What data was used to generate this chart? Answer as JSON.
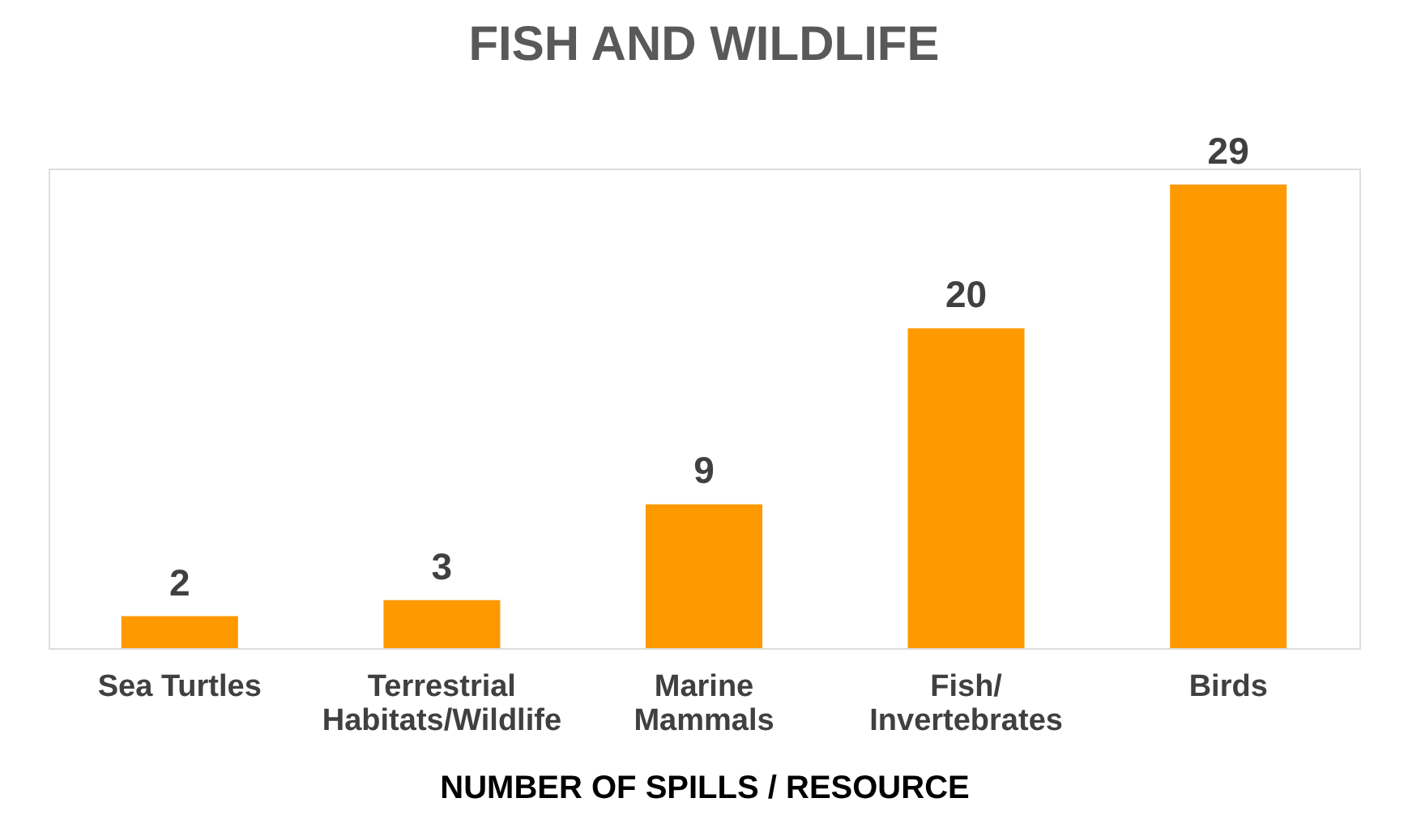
{
  "chart_data": {
    "type": "bar",
    "title": "FISH AND WILDLIFE",
    "categories": [
      "Sea Turtles",
      "Terrestrial\nHabitats/Wildlife",
      "Marine\nMammals",
      "Fish/\nInvertebrates",
      "Birds"
    ],
    "values": [
      2,
      3,
      9,
      20,
      29
    ],
    "color": "#ff9900",
    "data_labels": true,
    "xlabel": "NUMBER OF SPILLS / RESOURCE"
  }
}
